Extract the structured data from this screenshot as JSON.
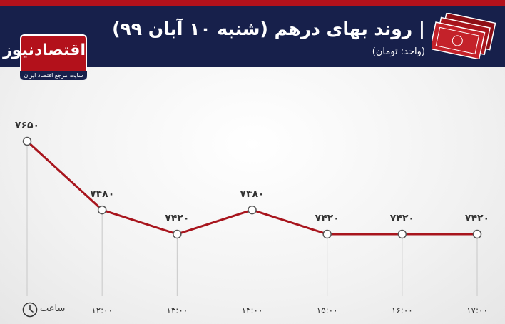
{
  "header": {
    "title": "| روند بهای درهم (شنبه ۱۰ آبان ۹۹)",
    "unit": "(واحد: تومان)"
  },
  "logo": {
    "name": "اقتصادنیوز",
    "tagline": "سایت مرجع اقتصاد ایران"
  },
  "colors": {
    "line": "#a8151d",
    "header_bg": "#17204b",
    "accent": "#b3111b"
  },
  "icons": [
    "banknotes-icon",
    "clock-icon"
  ],
  "chart_data": {
    "type": "line",
    "title": "| روند بهای درهم (شنبه ۱۰ آبان ۹۹)",
    "xlabel": "ساعت",
    "ylabel": "",
    "categories": [
      "",
      "۱۲:۰۰",
      "۱۳:۰۰",
      "۱۴:۰۰",
      "۱۵:۰۰",
      "۱۶:۰۰",
      "۱۷:۰۰"
    ],
    "values": [
      7650,
      7480,
      7420,
      7480,
      7420,
      7420,
      7420
    ],
    "value_labels": [
      "۷۶۵۰",
      "۷۴۸۰",
      "۷۴۲۰",
      "۷۴۸۰",
      "۷۴۲۰",
      "۷۴۲۰",
      "۷۴۲۰"
    ],
    "ylim": [
      7420,
      7650
    ],
    "grid": false,
    "legend": "none"
  }
}
